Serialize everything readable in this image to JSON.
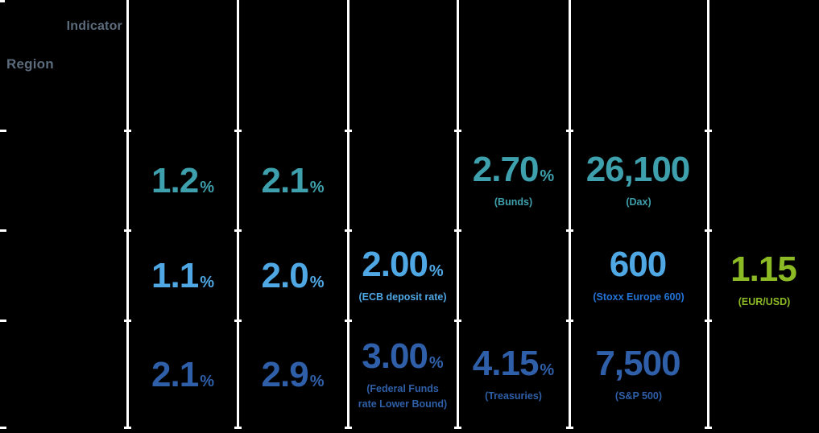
{
  "header": {
    "indicator_label": "Indicator",
    "region_label": "Region"
  },
  "colors": {
    "background": "#000000",
    "grid_line": "#ffffff",
    "header_gray": "#5c6c7d",
    "teal": "#3ea0ac",
    "light_blue": "#4fa7e4",
    "stoxx_label_blue": "#2473d6",
    "royal_blue": "#2e5fa8",
    "green": "#8bba25"
  },
  "rows": [
    {
      "cells": [
        {
          "value": "1.2",
          "suffix": "%",
          "label": ""
        },
        {
          "value": "2.1",
          "suffix": "%",
          "label": ""
        },
        {
          "value": "2.70",
          "suffix": "%",
          "label": "(Bunds)"
        },
        {
          "value": "26,100",
          "suffix": "",
          "label": "(Dax)"
        }
      ]
    },
    {
      "cells": [
        {
          "value": "1.1",
          "suffix": "%",
          "label": ""
        },
        {
          "value": "2.0",
          "suffix": "%",
          "label": ""
        },
        {
          "value": "2.00",
          "suffix": "%",
          "label": "(ECB deposit rate)"
        },
        {
          "value": "600",
          "suffix": "",
          "label": "(Stoxx Europe 600)"
        },
        {
          "value": "1.15",
          "suffix": "",
          "label": "(EUR/USD)"
        }
      ]
    },
    {
      "cells": [
        {
          "value": "2.1",
          "suffix": "%",
          "label": ""
        },
        {
          "value": "2.9",
          "suffix": "%",
          "label": ""
        },
        {
          "value": "3.00",
          "suffix": "%",
          "label": "(Federal Funds",
          "label2": "rate Lower Bound)"
        },
        {
          "value": "4.15",
          "suffix": "%",
          "label": "(Treasuries)"
        },
        {
          "value": "7,500",
          "suffix": "",
          "label": "(S&P 500)"
        }
      ]
    }
  ],
  "chart_data": {
    "type": "table",
    "title": "",
    "corner_labels": {
      "top_axis": "Indicator",
      "left_axis": "Region"
    },
    "rows": [
      [
        "1.2%",
        "2.1%",
        "",
        "2.70% (Bunds)",
        "26,100 (Dax)",
        ""
      ],
      [
        "1.1%",
        "2.0%",
        "2.00% (ECB deposit rate)",
        "",
        "600 (Stoxx Europe 600)",
        "1.15 (EUR/USD)"
      ],
      [
        "2.1%",
        "2.9%",
        "3.00% (Federal Funds rate Lower Bound)",
        "4.15% (Treasuries)",
        "7,500 (S&P 500)",
        ""
      ]
    ],
    "row_value_colors": [
      "#3ea0ac",
      "#4fa7e4",
      "#2e5fa8"
    ],
    "special_colors": {
      "eur_usd_value": "#8bba25",
      "stoxx_sublabel": "#2473d6"
    },
    "layout": "matrix table, black background, white vertical column separators, column and row headers not visible"
  }
}
